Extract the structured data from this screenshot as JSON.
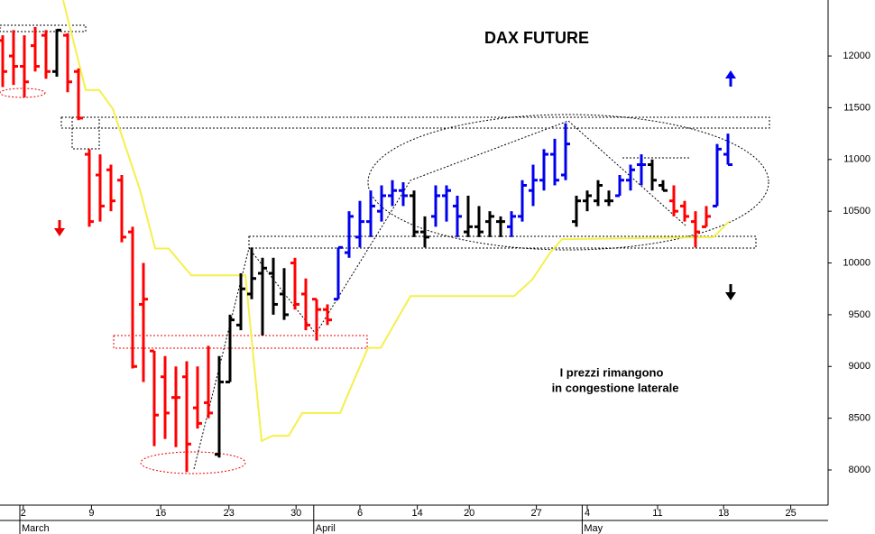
{
  "chart_data": {
    "type": "ohlc",
    "title": "DAX FUTURE",
    "annotation": [
      "I prezzi rimangono",
      "in congestione laterale"
    ],
    "xlim": [
      -0.25,
      76.25
    ],
    "ylim": [
      7660,
      12541
    ],
    "yticks": [
      8000,
      8500,
      9000,
      9500,
      10000,
      10500,
      11000,
      11500,
      12000
    ],
    "xticks": [
      {
        "value": 1.9,
        "label": "2"
      },
      {
        "value": 8.2,
        "label": "9"
      },
      {
        "value": 14.6,
        "label": "16"
      },
      {
        "value": 20.9,
        "label": "23"
      },
      {
        "value": 27.1,
        "label": "30"
      },
      {
        "value": 33,
        "label": "6"
      },
      {
        "value": 38.3,
        "label": "14"
      },
      {
        "value": 43.1,
        "label": "20"
      },
      {
        "value": 49.3,
        "label": "27"
      },
      {
        "value": 54,
        "label": "4"
      },
      {
        "value": 60.5,
        "label": "11"
      },
      {
        "value": 66.6,
        "label": "18"
      },
      {
        "value": 72.8,
        "label": "25"
      }
    ],
    "months": [
      {
        "value": 1.75,
        "label": "March"
      },
      {
        "value": 28.9,
        "label": "April"
      },
      {
        "value": 53.7,
        "label": "May"
      }
    ],
    "series": [
      {
        "color": "#ff0000",
        "x": [
          0,
          1,
          2,
          3,
          4,
          6,
          7,
          8,
          9,
          10,
          11,
          12,
          13,
          14,
          15,
          16,
          17,
          18,
          19,
          27,
          28,
          29,
          30,
          62,
          63,
          64,
          65
        ],
        "open": [
          12150,
          12000,
          11900,
          12100,
          12200,
          12200,
          11850,
          11050,
          10850,
          10900,
          10800,
          10300,
          9600,
          9150,
          8900,
          8700,
          8900,
          8600,
          8650,
          10000,
          9700,
          9650,
          9550,
          10600,
          10550,
          10400,
          10350
        ],
        "high": [
          12200,
          12250,
          12200,
          12280,
          12250,
          12220,
          11880,
          11100,
          11050,
          10950,
          10850,
          10350,
          10000,
          9150,
          9100,
          9000,
          9050,
          9000,
          9200,
          10050,
          9850,
          9650,
          9600,
          10750,
          10600,
          10500,
          10550
        ],
        "low": [
          11700,
          11720,
          11600,
          11850,
          11780,
          11650,
          11380,
          10350,
          10400,
          10500,
          10200,
          8980,
          8850,
          8230,
          8300,
          8220,
          7980,
          8400,
          8500,
          9550,
          9350,
          9250,
          9400,
          10450,
          10400,
          10150,
          10350
        ],
        "close": [
          11850,
          11900,
          11750,
          11900,
          11850,
          11750,
          11400,
          10400,
          10550,
          10600,
          10250,
          9000,
          9650,
          8530,
          8550,
          8700,
          8250,
          8450,
          8550,
          9600,
          9400,
          9550,
          9450,
          10500,
          10450,
          10300,
          10450
        ]
      },
      {
        "color": "#000000",
        "x": [
          5,
          20,
          21,
          22,
          23,
          24,
          25,
          26,
          38,
          39,
          43,
          44,
          45,
          46,
          53,
          54,
          55,
          56,
          60,
          61
        ],
        "open": [
          11850,
          8150,
          8850,
          9400,
          9700,
          9900,
          9900,
          9700,
          10650,
          10300,
          10300,
          10350,
          10400,
          10400,
          10400,
          10600,
          10600,
          10600,
          10950,
          10750
        ],
        "high": [
          12260,
          9100,
          9500,
          9900,
          10150,
          10050,
          10050,
          9950,
          10700,
          10450,
          10650,
          10550,
          10500,
          10450,
          10650,
          10700,
          10800,
          10700,
          11000,
          10800
        ],
        "low": [
          11800,
          8120,
          8850,
          9350,
          9650,
          9300,
          9500,
          9450,
          10250,
          10150,
          10250,
          10250,
          10250,
          10250,
          10350,
          10500,
          10550,
          10550,
          10700,
          10700
        ],
        "close": [
          12250,
          8850,
          9450,
          9750,
          9850,
          9950,
          9600,
          9500,
          10300,
          10250,
          10350,
          10300,
          10450,
          10400,
          10600,
          10650,
          10750,
          10600,
          10800,
          10700
        ]
      },
      {
        "color": "#0000ee",
        "x": [
          31,
          32,
          33,
          34,
          35,
          36,
          37,
          40,
          41,
          42,
          47,
          48,
          49,
          50,
          51,
          52,
          57,
          58,
          59,
          66,
          67
        ],
        "open": [
          9650,
          10100,
          10250,
          10400,
          10500,
          10650,
          10700,
          10450,
          10650,
          10550,
          10350,
          10450,
          10700,
          10800,
          11050,
          10850,
          10650,
          10800,
          10950,
          10550,
          11050
        ],
        "high": [
          10150,
          10500,
          10600,
          10700,
          10750,
          10800,
          10780,
          10750,
          10750,
          10650,
          10500,
          10800,
          10950,
          11100,
          11200,
          11350,
          10850,
          10950,
          11050,
          11150,
          11250
        ],
        "low": [
          9650,
          10050,
          10150,
          10250,
          10400,
          10550,
          10550,
          10350,
          10400,
          10250,
          10250,
          10400,
          10550,
          10700,
          10750,
          10800,
          10650,
          10700,
          10750,
          10550,
          10950
        ],
        "close": [
          10150,
          10450,
          10400,
          10550,
          10650,
          10700,
          10650,
          10650,
          10700,
          10450,
          10450,
          10750,
          10800,
          11050,
          10800,
          11150,
          10800,
          10900,
          10950,
          11100,
          10950
        ]
      }
    ],
    "lines": [
      {
        "color": "#f5f04a",
        "x": [
          5.58,
          7.67,
          8.92,
          10.17,
          12.67,
          14.08,
          15.33,
          17.42,
          22.42,
          23.92,
          24.92,
          26.42,
          27.67,
          31.17,
          32.5,
          33.75,
          34.92,
          37.67,
          47.25,
          48.92,
          50.58,
          51.67,
          65.67,
          67.08
        ],
        "values": [
          12541,
          11670,
          11670,
          11490,
          10710,
          10140,
          10140,
          9880,
          9880,
          8280,
          8330,
          8330,
          8550,
          8550,
          8880,
          9180,
          9180,
          9680,
          9680,
          9840,
          10100,
          10230,
          10250,
          10400
        ]
      }
    ]
  }
}
